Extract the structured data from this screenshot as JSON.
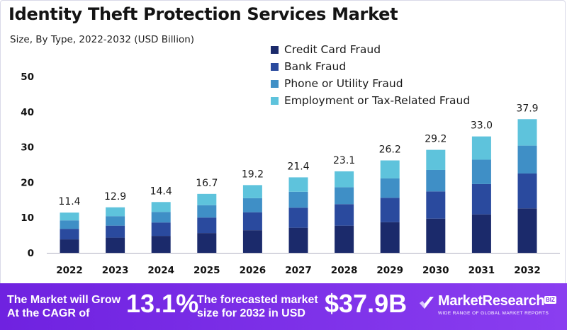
{
  "chart_data": {
    "type": "bar",
    "stacked": true,
    "title": "Identity Theft Protection Services Market",
    "subtitle": "Size, By Type, 2022-2032 (USD Billion)",
    "categories": [
      "2022",
      "2023",
      "2024",
      "2025",
      "2026",
      "2027",
      "2028",
      "2029",
      "2030",
      "2031",
      "2032"
    ],
    "series": [
      {
        "name": "Credit Card Fraud",
        "color": "#1b2a6b",
        "values": [
          3.8,
          4.3,
          4.8,
          5.6,
          6.4,
          7.1,
          7.7,
          8.7,
          9.7,
          10.9,
          12.6
        ]
      },
      {
        "name": "Bank Fraud",
        "color": "#2a4a9e",
        "values": [
          3.0,
          3.4,
          3.8,
          4.4,
          5.1,
          5.7,
          6.1,
          6.9,
          7.7,
          8.6,
          9.9
        ]
      },
      {
        "name": "Phone or Utility Fraud",
        "color": "#3f8fc6",
        "values": [
          2.4,
          2.7,
          3.0,
          3.5,
          4.0,
          4.5,
          4.8,
          5.5,
          6.1,
          6.9,
          7.9
        ]
      },
      {
        "name": "Employment or Tax-Related Fraud",
        "color": "#5ec3dc",
        "values": [
          2.2,
          2.5,
          2.8,
          3.2,
          3.7,
          4.1,
          4.5,
          5.1,
          5.7,
          6.6,
          7.5
        ]
      }
    ],
    "totals": [
      11.4,
      12.9,
      14.4,
      16.7,
      19.2,
      21.4,
      23.1,
      26.2,
      29.2,
      33.0,
      37.9
    ],
    "total_labels": [
      "11.4",
      "12.9",
      "14.4",
      "16.7",
      "19.2",
      "21.4",
      "23.1",
      "26.2",
      "29.2",
      "33.0",
      "37.9"
    ],
    "yticks": [
      0,
      10,
      20,
      30,
      40,
      50
    ],
    "ytick_labels": [
      "0",
      "10",
      "20",
      "30",
      "40",
      "50"
    ],
    "ylim": [
      0,
      50
    ],
    "grid": false,
    "legend_position": "top-right"
  },
  "footer": {
    "cagr_text_line1": "The Market will Grow",
    "cagr_text_line2": "At the CAGR of",
    "cagr_value": "13.1%",
    "forecast_text_line1": "The forecasted market",
    "forecast_text_line2": "size for 2032 in USD",
    "forecast_value": "$37.9B",
    "brand_name": "MarketResearch",
    "brand_badge": "BIZ",
    "brand_tagline": "WIDE RANGE OF GLOBAL MARKET REPORTS",
    "brand_icon": "checkmark-logo-icon"
  },
  "colors": {
    "footer_bg": "#7b2ae6",
    "axis": "#b0b0c0"
  }
}
